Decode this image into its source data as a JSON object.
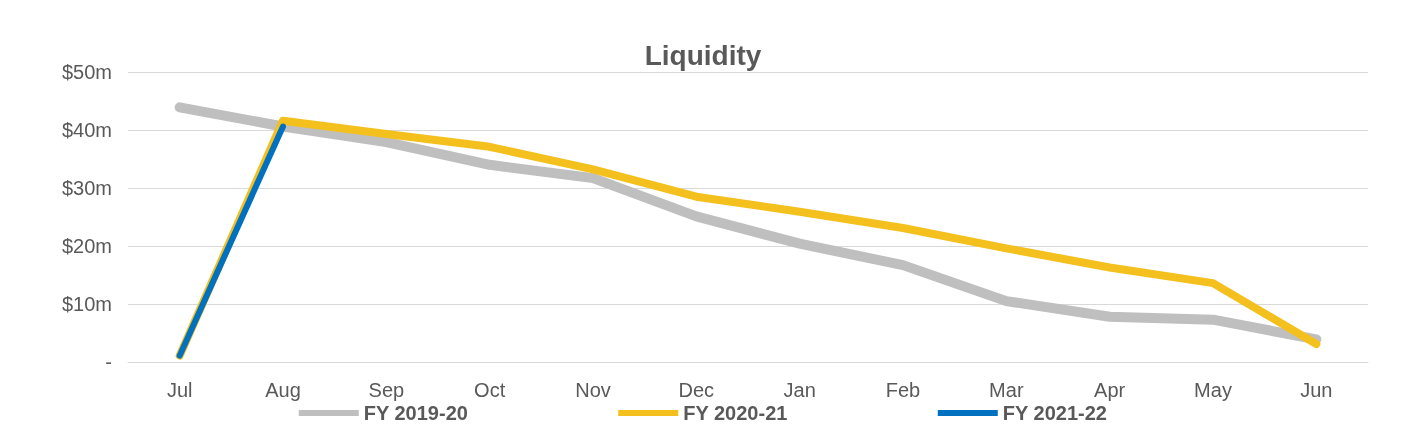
{
  "chart_data": {
    "type": "line",
    "title": "Liquidity",
    "categories": [
      "Jul",
      "Aug",
      "Sep",
      "Oct",
      "Nov",
      "Dec",
      "Jan",
      "Feb",
      "Mar",
      "Apr",
      "May",
      "Jun"
    ],
    "series": [
      {
        "name": "FY 2019-20",
        "color": "#bfbfbf",
        "values": [
          43.9,
          40.6,
          37.9,
          34.0,
          31.7,
          25.1,
          20.4,
          16.7,
          10.5,
          7.8,
          7.3,
          3.9
        ]
      },
      {
        "name": "FY 2020-21",
        "color": "#f4c01e",
        "values": [
          1.1,
          41.6,
          39.3,
          37.1,
          33.2,
          28.5,
          25.9,
          23.1,
          19.6,
          16.3,
          13.6,
          3.1
        ]
      },
      {
        "name": "FY 2021-22",
        "color": "#0070c0",
        "values": [
          1.1,
          40.6,
          null,
          null,
          null,
          null,
          null,
          null,
          null,
          null,
          null,
          null
        ]
      }
    ],
    "ylim": [
      0,
      50
    ],
    "yticks": [
      {
        "value": 0,
        "label": "-"
      },
      {
        "value": 10,
        "label": "$10m"
      },
      {
        "value": 20,
        "label": "$20m"
      },
      {
        "value": 30,
        "label": "$30m"
      },
      {
        "value": 40,
        "label": "$40m"
      },
      {
        "value": 50,
        "label": "$50m"
      }
    ],
    "grid": "y",
    "legend": "bottom",
    "marker": "none",
    "line_style": "solid"
  }
}
